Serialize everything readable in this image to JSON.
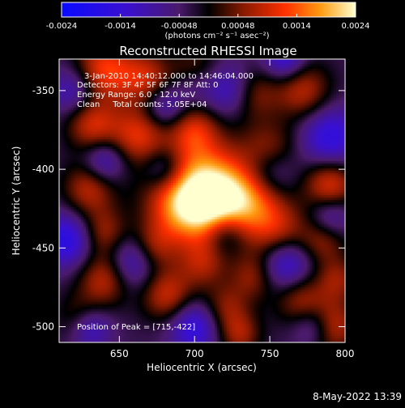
{
  "chart_data": {
    "type": "heatmap",
    "title": "Reconstructed RHESSI Image",
    "xlabel": "Heliocentric X (arcsec)",
    "ylabel": "Heliocentric Y (arcsec)",
    "xlim": [
      610,
      800
    ],
    "ylim": [
      -510,
      -330
    ],
    "xticks": [
      650,
      700,
      750,
      800
    ],
    "yticks": [
      -350,
      -400,
      -450,
      -500
    ],
    "colorbar": {
      "min": -0.0024,
      "max": 0.0024,
      "ticks": [
        "-0.0024",
        "-0.0014",
        "-0.00048",
        "0.00048",
        "0.0014",
        "0.0024"
      ],
      "unit_label": "(photons cm⁻² s⁻¹ asec⁻²)"
    },
    "annotations": {
      "time_range": "3-Jan-2010 14:40:12.000 to 14:46:04.000",
      "detectors": "Detectors: 3F 4F 5F 6F 7F 8F Att: 0",
      "energy": "Energy Range: 6.0 - 12.0 keV",
      "clean_totals": "Clean     Total counts: 5.05E+04",
      "peak": "Position of Peak = [715,-422]"
    },
    "blobs": [
      {
        "x": 715,
        "y": -422,
        "a": 2.4,
        "s": 18
      },
      {
        "x": 700,
        "y": -405,
        "a": 1.4,
        "s": 22
      },
      {
        "x": 740,
        "y": -418,
        "a": 1.0,
        "s": 14
      },
      {
        "x": 690,
        "y": -425,
        "a": 1.1,
        "s": 15
      },
      {
        "x": 640,
        "y": -337,
        "a": 1.6,
        "s": 14
      },
      {
        "x": 668,
        "y": -342,
        "a": 1.2,
        "s": 12
      },
      {
        "x": 700,
        "y": -338,
        "a": 1.0,
        "s": 11
      },
      {
        "x": 738,
        "y": -352,
        "a": 1.1,
        "s": 12
      },
      {
        "x": 772,
        "y": -350,
        "a": 1.2,
        "s": 13
      },
      {
        "x": 632,
        "y": -372,
        "a": 1.3,
        "s": 12
      },
      {
        "x": 662,
        "y": -378,
        "a": 1.3,
        "s": 13
      },
      {
        "x": 700,
        "y": -375,
        "a": 1.0,
        "s": 11
      },
      {
        "x": 750,
        "y": -390,
        "a": 1.3,
        "s": 13
      },
      {
        "x": 790,
        "y": -410,
        "a": 1.5,
        "s": 12
      },
      {
        "x": 630,
        "y": -412,
        "a": 1.2,
        "s": 12
      },
      {
        "x": 640,
        "y": -440,
        "a": 1.0,
        "s": 11
      },
      {
        "x": 672,
        "y": -450,
        "a": 1.1,
        "s": 11
      },
      {
        "x": 755,
        "y": -440,
        "a": 1.3,
        "s": 14
      },
      {
        "x": 785,
        "y": -445,
        "a": 1.0,
        "s": 11
      },
      {
        "x": 705,
        "y": -460,
        "a": 0.9,
        "s": 11
      },
      {
        "x": 740,
        "y": -468,
        "a": 1.0,
        "s": 11
      },
      {
        "x": 640,
        "y": -470,
        "a": 1.2,
        "s": 12
      },
      {
        "x": 682,
        "y": -480,
        "a": 1.3,
        "s": 12
      },
      {
        "x": 720,
        "y": -488,
        "a": 0.9,
        "s": 11
      },
      {
        "x": 770,
        "y": -482,
        "a": 1.1,
        "s": 12
      },
      {
        "x": 790,
        "y": -500,
        "a": 1.5,
        "s": 12
      },
      {
        "x": 625,
        "y": -495,
        "a": 1.0,
        "s": 11
      },
      {
        "x": 730,
        "y": -505,
        "a": 1.0,
        "s": 10
      },
      {
        "x": 795,
        "y": -470,
        "a": 0.9,
        "s": 10
      },
      {
        "x": 615,
        "y": -445,
        "a": -1.4,
        "s": 12
      },
      {
        "x": 700,
        "y": -345,
        "a": -0.8,
        "s": 10
      },
      {
        "x": 750,
        "y": -400,
        "a": -1.3,
        "s": 12
      },
      {
        "x": 660,
        "y": -458,
        "a": -1.2,
        "s": 12
      },
      {
        "x": 760,
        "y": -460,
        "a": -1.5,
        "s": 13
      },
      {
        "x": 725,
        "y": -350,
        "a": -1.2,
        "s": 12
      },
      {
        "x": 790,
        "y": -380,
        "a": -1.3,
        "s": 14
      },
      {
        "x": 630,
        "y": -500,
        "a": -1.4,
        "s": 10
      },
      {
        "x": 700,
        "y": -500,
        "a": -1.3,
        "s": 12
      },
      {
        "x": 780,
        "y": -500,
        "a": -1.2,
        "s": 10
      },
      {
        "x": 640,
        "y": -395,
        "a": -1.1,
        "s": 10
      },
      {
        "x": 620,
        "y": -350,
        "a": -1.0,
        "s": 11
      },
      {
        "x": 680,
        "y": -400,
        "a": -1.1,
        "s": 10
      },
      {
        "x": 680,
        "y": -360,
        "a": -1.0,
        "s": 10
      },
      {
        "x": 720,
        "y": -440,
        "a": -1.1,
        "s": 10
      },
      {
        "x": 790,
        "y": -430,
        "a": -1.0,
        "s": 10
      },
      {
        "x": 760,
        "y": -330,
        "a": -1.2,
        "s": 10
      }
    ]
  },
  "footer": {
    "datetime": "8-May-2022 13:39"
  }
}
